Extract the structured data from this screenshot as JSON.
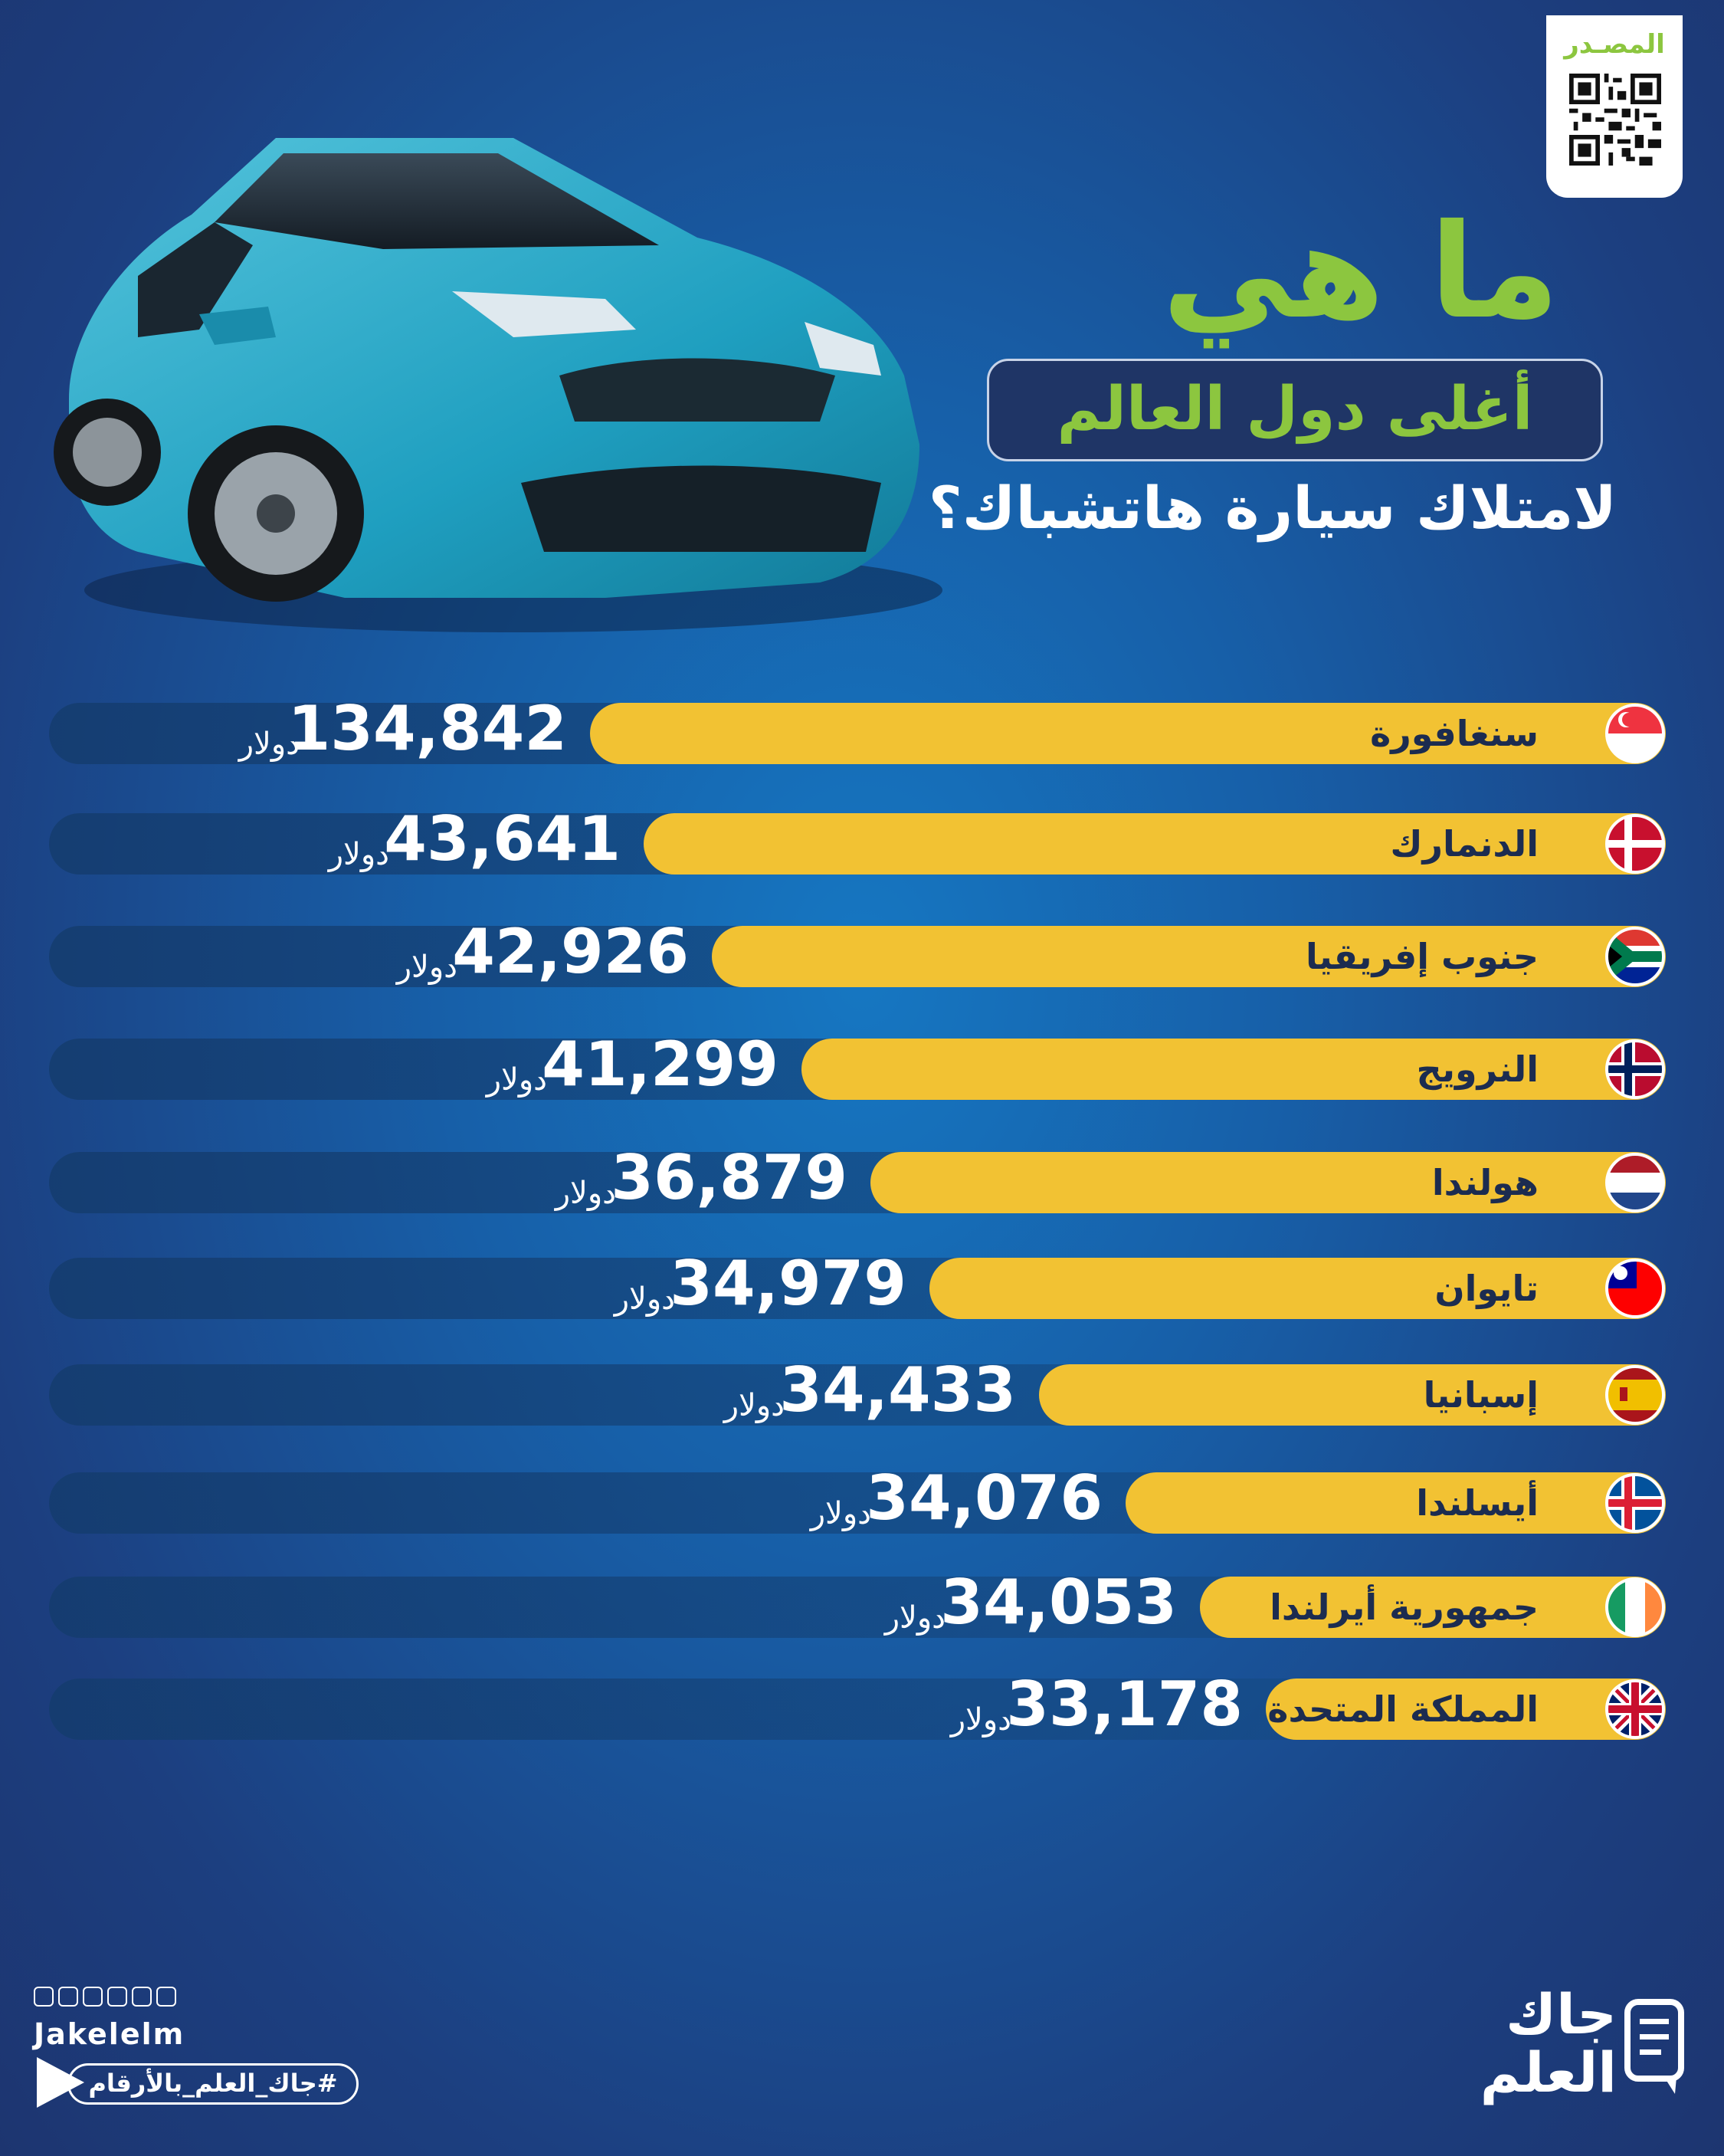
{
  "source": {
    "label": "المصـدر"
  },
  "title": {
    "line1": "ما هي",
    "line2": "أغلى دول العالم",
    "line3": "لامتلاك سيارة هاتشباك؟"
  },
  "chart_data": {
    "type": "bar",
    "orientation": "horizontal",
    "unit": "دولار",
    "categories": [
      "سنغافورة",
      "الدنمارك",
      "جنوب إفريقيا",
      "النرويج",
      "هولندا",
      "تايوان",
      "إسبانيا",
      "أيسلندا",
      "جمهورية أيرلندا",
      "المملكة المتحدة"
    ],
    "values": [
      134842,
      43641,
      42926,
      41299,
      36879,
      34979,
      34433,
      34076,
      34053,
      33178
    ],
    "value_labels": [
      "134,842",
      "43,641",
      "42,926",
      "41,299",
      "36,879",
      "34,979",
      "34,433",
      "34,076",
      "34,053",
      "33,178"
    ],
    "flags": [
      "singapore-flag",
      "denmark-flag",
      "south-africa-flag",
      "norway-flag",
      "netherlands-flag",
      "taiwan-flag",
      "spain-flag",
      "iceland-flag",
      "ireland-flag",
      "united-kingdom-flag"
    ],
    "bar_color": "#f2c233"
  },
  "footer": {
    "handle": "Jakelelm",
    "hashtag": "#جاك_العلم_بالأرقام",
    "logo_line1": "جاك",
    "logo_line2": "العلم"
  },
  "colors": {
    "accent": "#8cc63f",
    "bar": "#f2c233",
    "background": "#175fa8"
  }
}
